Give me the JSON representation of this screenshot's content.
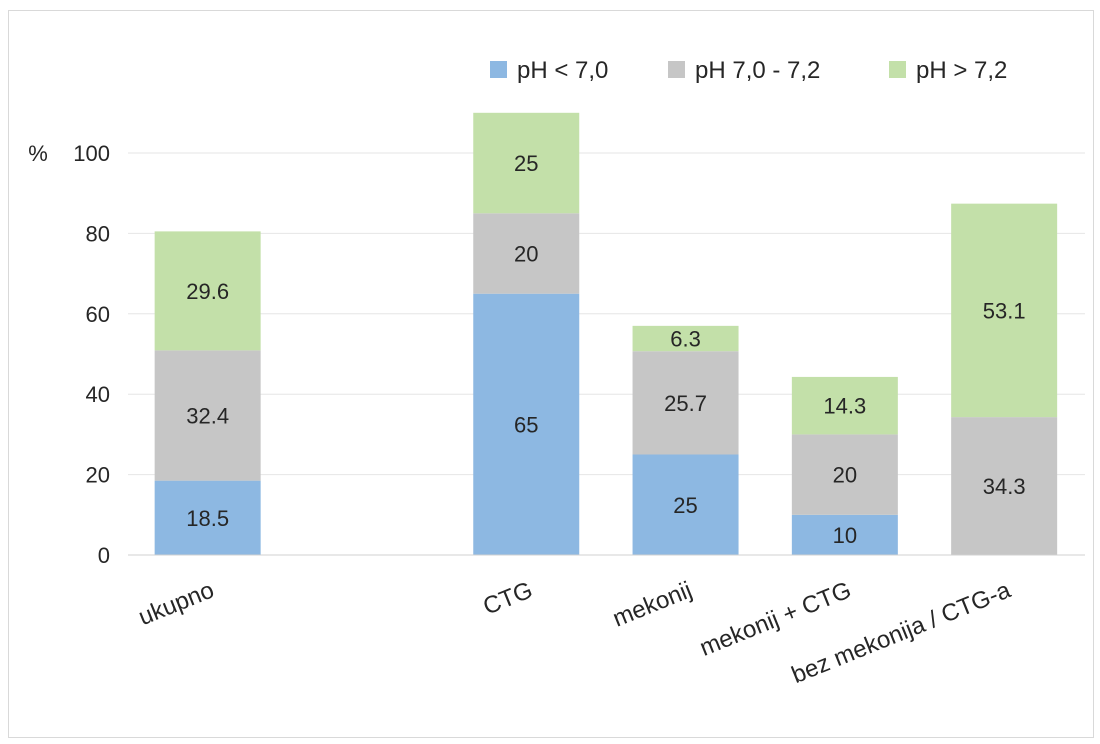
{
  "chart_data": {
    "type": "bar",
    "stacked": true,
    "title": "",
    "xlabel": "",
    "ylabel": "%",
    "ylim": [
      0,
      100
    ],
    "yticks": [
      0,
      20,
      40,
      60,
      80,
      100
    ],
    "grid": true,
    "legend_position": "top-right",
    "categories": [
      "ukupno",
      "",
      "CTG",
      "mekonij",
      "mekonij + CTG",
      "bez mekonija / CTG-a"
    ],
    "series": [
      {
        "name": "pH < 7,0",
        "color": "#8db8e2",
        "values": [
          18.5,
          null,
          65,
          25,
          10,
          null
        ],
        "labels": [
          "18.5",
          null,
          "65",
          "25",
          "10",
          null
        ]
      },
      {
        "name": "pH 7,0 - 7,2",
        "color": "#c6c6c6",
        "values": [
          32.4,
          null,
          20,
          25.7,
          20,
          34.3
        ],
        "labels": [
          "32.4",
          null,
          "20",
          "25.7",
          "20",
          "34.3"
        ]
      },
      {
        "name": "pH > 7,2",
        "color": "#c3e0a9",
        "values": [
          29.6,
          null,
          25,
          6.3,
          14.3,
          53.1
        ],
        "labels": [
          "29.6",
          null,
          "25",
          "6.3",
          "14.3",
          "53.1"
        ]
      }
    ]
  }
}
